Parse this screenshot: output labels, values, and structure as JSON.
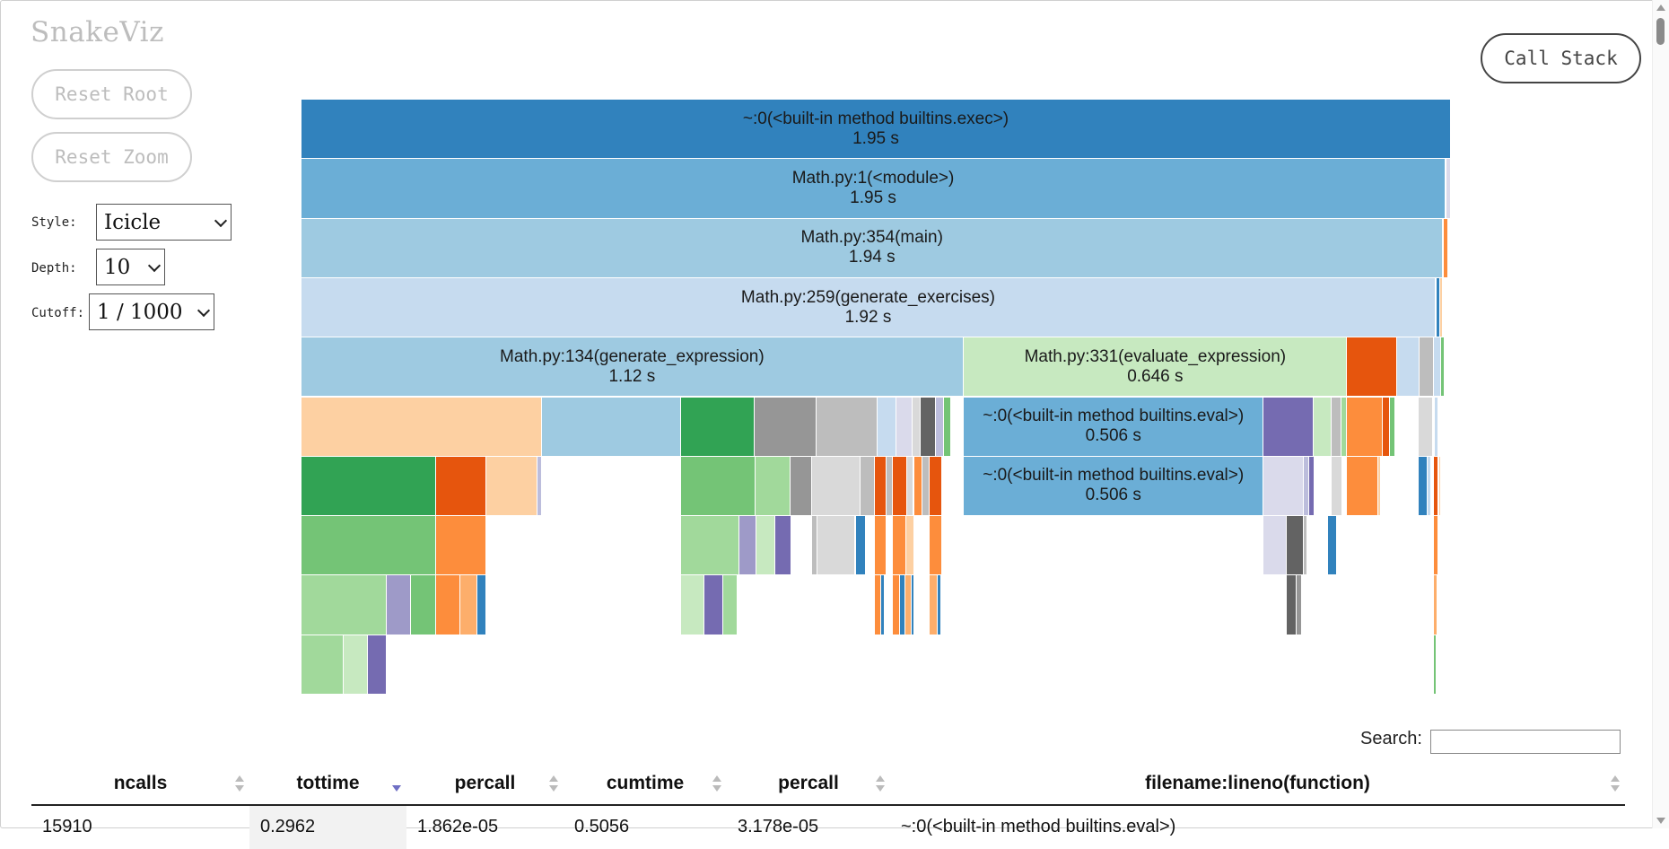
{
  "app": {
    "title": "SnakeViz"
  },
  "controls": {
    "reset_root": "Reset Root",
    "reset_zoom": "Reset Zoom",
    "call_stack": "Call Stack",
    "style_label": "Style:",
    "style_value": "Icicle",
    "depth_label": "Depth:",
    "depth_value": "10",
    "cutoff_label": "Cutoff:",
    "cutoff_value": "1 / 1000"
  },
  "icicle": {
    "total_seconds": 1.95,
    "rows": [
      [
        {
          "name": "~:0(<built-in method builtins.exec>)",
          "time": "1.95 s",
          "start": 0,
          "width": 1.95,
          "color": "#3182bd"
        }
      ],
      [
        {
          "name": "Math.py:1(<module>)",
          "time": "1.95 s",
          "start": 0,
          "width": 1.941,
          "color": "#6baed6"
        },
        {
          "start": 1.942,
          "width": 0.008,
          "color": "#dadaeb"
        }
      ],
      [
        {
          "name": "Math.py:354(main)",
          "time": "1.94 s",
          "start": 0,
          "width": 1.937,
          "color": "#9ecae1"
        },
        {
          "start": 1.938,
          "width": 0.008,
          "color": "#fd8d3c"
        }
      ],
      [
        {
          "name": "Math.py:259(generate_exercises)",
          "time": "1.92 s",
          "start": 0,
          "width": 1.924,
          "color": "#c6dbef"
        },
        {
          "start": 1.925,
          "width": 0.006,
          "color": "#3182bd"
        },
        {
          "start": 1.931,
          "width": 0.006,
          "color": "#fdd0a2"
        }
      ],
      [
        {
          "name": "Math.py:134(generate_expression)",
          "time": "1.12 s",
          "start": 0,
          "width": 1.123,
          "color": "#9ecae1"
        },
        {
          "name": "Math.py:331(evaluate_expression)",
          "time": "0.646 s",
          "start": 1.124,
          "width": 0.65,
          "color": "#c7e9c0"
        },
        {
          "start": 1.774,
          "width": 0.085,
          "color": "#e6550d"
        },
        {
          "start": 1.859,
          "width": 0.037,
          "color": "#c6dbef"
        },
        {
          "start": 1.896,
          "width": 0.025,
          "color": "#bdbdbd"
        },
        {
          "start": 1.921,
          "width": 0.012,
          "color": "#c6dbef"
        },
        {
          "start": 1.934,
          "width": 0.006,
          "color": "#74c476"
        }
      ],
      [
        {
          "start": 0,
          "width": 0.408,
          "color": "#fdd0a2"
        },
        {
          "start": 0.408,
          "width": 0.236,
          "color": "#9ecae1"
        },
        {
          "start": 0.644,
          "width": 0.125,
          "color": "#31a354"
        },
        {
          "start": 0.769,
          "width": 0.105,
          "color": "#969696"
        },
        {
          "start": 0.874,
          "width": 0.104,
          "color": "#bdbdbd"
        },
        {
          "start": 0.978,
          "width": 0.032,
          "color": "#c6dbef"
        },
        {
          "start": 1.01,
          "width": 0.027,
          "color": "#dadaeb"
        },
        {
          "start": 1.037,
          "width": 0.013,
          "color": "#d9d9d9"
        },
        {
          "start": 1.05,
          "width": 0.026,
          "color": "#636363"
        },
        {
          "start": 1.076,
          "width": 0.014,
          "color": "#bcbddc"
        },
        {
          "start": 1.09,
          "width": 0.012,
          "color": "#74c476"
        },
        {
          "name": "~:0(<built-in method builtins.eval>)",
          "time": "0.506 s",
          "start": 1.124,
          "width": 0.508,
          "color": "#6baed6"
        },
        {
          "start": 1.632,
          "width": 0.085,
          "color": "#756bb1"
        },
        {
          "start": 1.717,
          "width": 0.031,
          "color": "#c7e9c0"
        },
        {
          "start": 1.748,
          "width": 0.017,
          "color": "#bdbdbd"
        },
        {
          "start": 1.765,
          "width": 0.008,
          "color": "#a1d99b"
        },
        {
          "start": 1.774,
          "width": 0.061,
          "color": "#fd8d3c"
        },
        {
          "start": 1.835,
          "width": 0.012,
          "color": "#e6550d"
        },
        {
          "start": 1.847,
          "width": 0.009,
          "color": "#74c476"
        },
        {
          "start": 1.895,
          "width": 0.024,
          "color": "#d9d9d9"
        },
        {
          "start": 1.923,
          "width": 0.006,
          "color": "#c6dbef"
        }
      ],
      [
        {
          "start": 0,
          "width": 0.229,
          "color": "#31a354"
        },
        {
          "start": 0.229,
          "width": 0.085,
          "color": "#e6550d"
        },
        {
          "start": 0.314,
          "width": 0.086,
          "color": "#fdd0a2"
        },
        {
          "start": 0.4,
          "width": 0.008,
          "color": "#bcbddc"
        },
        {
          "start": 0.644,
          "width": 0.127,
          "color": "#74c476"
        },
        {
          "start": 0.771,
          "width": 0.059,
          "color": "#a1d99b"
        },
        {
          "start": 0.83,
          "width": 0.036,
          "color": "#969696"
        },
        {
          "start": 0.866,
          "width": 0.082,
          "color": "#d9d9d9"
        },
        {
          "start": 0.948,
          "width": 0.024,
          "color": "#bdbdbd"
        },
        {
          "start": 0.972,
          "width": 0.02,
          "color": "#e6550d"
        },
        {
          "start": 0.992,
          "width": 0.011,
          "color": "#bdbdbd"
        },
        {
          "start": 1.003,
          "width": 0.024,
          "color": "#e6550d"
        },
        {
          "start": 1.027,
          "width": 0.011,
          "color": "#d9d9d9"
        },
        {
          "start": 1.04,
          "width": 0.014,
          "color": "#fd8d3c"
        },
        {
          "start": 1.054,
          "width": 0.012,
          "color": "#bdbdbd"
        },
        {
          "start": 1.066,
          "width": 0.021,
          "color": "#e6550d"
        },
        {
          "name": "~:0(<built-in method builtins.eval>)",
          "time": "0.506 s",
          "start": 1.124,
          "width": 0.508,
          "color": "#6baed6"
        },
        {
          "start": 1.632,
          "width": 0.069,
          "color": "#dadaeb"
        },
        {
          "start": 1.701,
          "width": 0.009,
          "color": "#bcbddc"
        },
        {
          "start": 1.71,
          "width": 0.008,
          "color": "#756bb1"
        },
        {
          "start": 1.748,
          "width": 0.018,
          "color": "#d9d9d9"
        },
        {
          "start": 1.774,
          "width": 0.052,
          "color": "#fd8d3c"
        },
        {
          "start": 1.826,
          "width": 0.005,
          "color": "#fdd0a2"
        },
        {
          "start": 1.895,
          "width": 0.016,
          "color": "#3182bd"
        },
        {
          "start": 1.911,
          "width": 0.006,
          "color": "#c6dbef"
        },
        {
          "start": 1.921,
          "width": 0.007,
          "color": "#e6550d"
        },
        {
          "start": 1.93,
          "width": 0.004,
          "color": "#fdd0a2"
        }
      ],
      [
        {
          "start": 0,
          "width": 0.229,
          "color": "#74c476"
        },
        {
          "start": 0.229,
          "width": 0.085,
          "color": "#fd8d3c"
        },
        {
          "start": 0.644,
          "width": 0.099,
          "color": "#a1d99b"
        },
        {
          "start": 0.743,
          "width": 0.029,
          "color": "#9e9ac8"
        },
        {
          "start": 0.772,
          "width": 0.031,
          "color": "#c7e9c0"
        },
        {
          "start": 0.803,
          "width": 0.028,
          "color": "#756bb1"
        },
        {
          "start": 0.866,
          "width": 0.009,
          "color": "#bdbdbd"
        },
        {
          "start": 0.875,
          "width": 0.065,
          "color": "#d9d9d9"
        },
        {
          "start": 0.94,
          "width": 0.017,
          "color": "#3182bd"
        },
        {
          "start": 0.972,
          "width": 0.02,
          "color": "#fd8d3c"
        },
        {
          "start": 1.003,
          "width": 0.023,
          "color": "#fd8d3c"
        },
        {
          "start": 1.026,
          "width": 0.014,
          "color": "#fdd0a2"
        },
        {
          "start": 1.066,
          "width": 0.021,
          "color": "#fd8d3c"
        },
        {
          "start": 1.632,
          "width": 0.04,
          "color": "#dadaeb"
        },
        {
          "start": 1.672,
          "width": 0.028,
          "color": "#636363"
        },
        {
          "start": 1.7,
          "width": 0.006,
          "color": "#bdbdbd"
        },
        {
          "start": 1.742,
          "width": 0.015,
          "color": "#3182bd"
        },
        {
          "start": 1.829,
          "width": 0.002,
          "color": "#c7e9c0"
        },
        {
          "start": 1.921,
          "width": 0.007,
          "color": "#fd8d3c"
        }
      ],
      [
        {
          "start": 0,
          "width": 0.144,
          "color": "#a1d99b"
        },
        {
          "start": 0.144,
          "width": 0.042,
          "color": "#9e9ac8"
        },
        {
          "start": 0.186,
          "width": 0.042,
          "color": "#74c476"
        },
        {
          "start": 0.228,
          "width": 0.042,
          "color": "#fd8d3c"
        },
        {
          "start": 0.27,
          "width": 0.028,
          "color": "#fdae6b"
        },
        {
          "start": 0.298,
          "width": 0.016,
          "color": "#3182bd"
        },
        {
          "start": 0.644,
          "width": 0.04,
          "color": "#c7e9c0"
        },
        {
          "start": 0.684,
          "width": 0.032,
          "color": "#756bb1"
        },
        {
          "start": 0.716,
          "width": 0.024,
          "color": "#a1d99b"
        },
        {
          "start": 0.972,
          "width": 0.012,
          "color": "#fd8d3c"
        },
        {
          "start": 0.984,
          "width": 0.006,
          "color": "#3182bd"
        },
        {
          "start": 1.003,
          "width": 0.012,
          "color": "#fd8d3c"
        },
        {
          "start": 1.015,
          "width": 0.01,
          "color": "#3182bd"
        },
        {
          "start": 1.025,
          "width": 0.01,
          "color": "#fdae6b"
        },
        {
          "start": 1.035,
          "width": 0.005,
          "color": "#3182bd"
        },
        {
          "start": 1.066,
          "width": 0.013,
          "color": "#fdae6b"
        },
        {
          "start": 1.079,
          "width": 0.007,
          "color": "#3182bd"
        },
        {
          "start": 1.672,
          "width": 0.016,
          "color": "#636363"
        },
        {
          "start": 1.688,
          "width": 0.009,
          "color": "#969696"
        },
        {
          "start": 1.921,
          "width": 0.006,
          "color": "#fdae6b"
        }
      ],
      [
        {
          "start": 0,
          "width": 0.072,
          "color": "#a1d99b"
        },
        {
          "start": 0.072,
          "width": 0.04,
          "color": "#c7e9c0"
        },
        {
          "start": 0.112,
          "width": 0.032,
          "color": "#756bb1"
        },
        {
          "start": 1.921,
          "width": 0.004,
          "color": "#74c476"
        }
      ]
    ]
  },
  "search": {
    "label": "Search:",
    "value": ""
  },
  "table": {
    "columns": [
      "ncalls",
      "tottime",
      "percall",
      "cumtime",
      "percall",
      "filename:lineno(function)"
    ],
    "sorted_column": 1,
    "rows": [
      [
        "15910",
        "0.2962",
        "1.862e-05",
        "0.5056",
        "3.178e-05",
        "~:0(<built-in method builtins.eval>)"
      ]
    ]
  }
}
